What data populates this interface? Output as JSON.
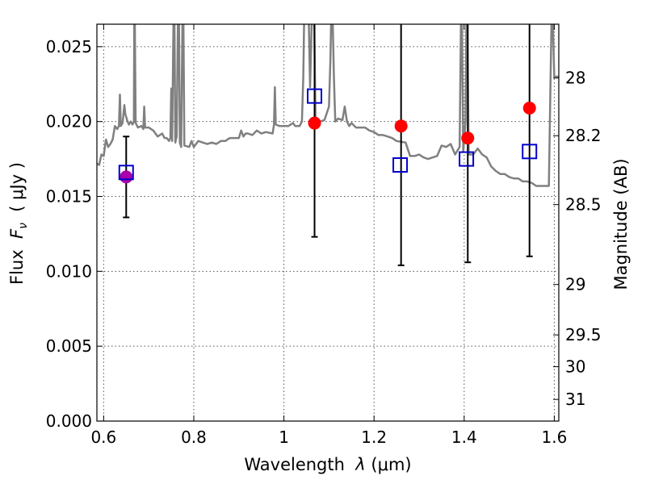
{
  "chart_data": {
    "type": "scatter",
    "title": "",
    "xlabel_prefix": "Wavelength  ",
    "xlabel_symbol": "λ",
    "xlabel_units": " (μm)",
    "ylabel_prefix": "Flux  ",
    "ylabel_symbol": "F",
    "ylabel_sub": "ν",
    "ylabel_units": "  ( μJy )",
    "y2label": "Magnitude (AB)",
    "xlim": [
      0.585,
      1.61
    ],
    "ylim": [
      0.0,
      0.0265
    ],
    "grid": true,
    "xticks": [
      {
        "v": 0.6,
        "label": "0.6"
      },
      {
        "v": 0.8,
        "label": "0.8"
      },
      {
        "v": 1.0,
        "label": "1"
      },
      {
        "v": 1.2,
        "label": "1.2"
      },
      {
        "v": 1.4,
        "label": "1.4"
      },
      {
        "v": 1.6,
        "label": "1.6"
      }
    ],
    "yticks": [
      {
        "v": 0.0,
        "label": "0.000"
      },
      {
        "v": 0.005,
        "label": "0.005"
      },
      {
        "v": 0.01,
        "label": "0.010"
      },
      {
        "v": 0.015,
        "label": "0.015"
      },
      {
        "v": 0.02,
        "label": "0.020"
      },
      {
        "v": 0.025,
        "label": "0.025"
      }
    ],
    "y2ticks": [
      {
        "mag": 28,
        "label": "28"
      },
      {
        "mag": 28.2,
        "label": "28.2"
      },
      {
        "mag": 28.5,
        "label": "28.5"
      },
      {
        "mag": 29,
        "label": "29"
      },
      {
        "mag": 29.5,
        "label": "29.5"
      },
      {
        "mag": 30,
        "label": "30"
      },
      {
        "mag": 31,
        "label": "31"
      }
    ],
    "y2_zeropoint_mag": 23.9,
    "colors": {
      "spectrum": "#808080",
      "observed": "#ff0000",
      "observed_edge": "#ff0000",
      "first_observed": "#aa00aa",
      "model": "#0000cc",
      "errorbar": "#000000",
      "grid": "#555555"
    },
    "series": [
      {
        "name": "model spectrum",
        "kind": "line",
        "points": [
          [
            0.585,
            0.0172
          ],
          [
            0.59,
            0.0171
          ],
          [
            0.595,
            0.0178
          ],
          [
            0.6,
            0.0177
          ],
          [
            0.605,
            0.0188
          ],
          [
            0.61,
            0.0183
          ],
          [
            0.615,
            0.0185
          ],
          [
            0.62,
            0.0188
          ],
          [
            0.625,
            0.0197
          ],
          [
            0.63,
            0.0195
          ],
          [
            0.634,
            0.0197
          ],
          [
            0.636,
            0.0218
          ],
          [
            0.638,
            0.0197
          ],
          [
            0.642,
            0.0199
          ],
          [
            0.646,
            0.0211
          ],
          [
            0.648,
            0.0205
          ],
          [
            0.652,
            0.0201
          ],
          [
            0.656,
            0.0198
          ],
          [
            0.66,
            0.02
          ],
          [
            0.664,
            0.0198
          ],
          [
            0.667,
            0.02
          ],
          [
            0.668,
            0.027
          ],
          [
            0.669,
            0.027
          ],
          [
            0.671,
            0.0199
          ],
          [
            0.676,
            0.0196
          ],
          [
            0.684,
            0.0197
          ],
          [
            0.688,
            0.0195
          ],
          [
            0.69,
            0.021
          ],
          [
            0.692,
            0.0196
          ],
          [
            0.7,
            0.0196
          ],
          [
            0.71,
            0.0194
          ],
          [
            0.72,
            0.019
          ],
          [
            0.73,
            0.0192
          ],
          [
            0.735,
            0.0189
          ],
          [
            0.74,
            0.0189
          ],
          [
            0.745,
            0.0187
          ],
          [
            0.748,
            0.0189
          ],
          [
            0.75,
            0.0222
          ],
          [
            0.752,
            0.0187
          ],
          [
            0.755,
            0.027
          ],
          [
            0.757,
            0.027
          ],
          [
            0.759,
            0.0186
          ],
          [
            0.762,
            0.019
          ],
          [
            0.765,
            0.027
          ],
          [
            0.767,
            0.027
          ],
          [
            0.769,
            0.0186
          ],
          [
            0.772,
            0.0183
          ],
          [
            0.775,
            0.027
          ],
          [
            0.777,
            0.027
          ],
          [
            0.779,
            0.0184
          ],
          [
            0.79,
            0.0183
          ],
          [
            0.795,
            0.0187
          ],
          [
            0.8,
            0.0183
          ],
          [
            0.81,
            0.0187
          ],
          [
            0.82,
            0.0186
          ],
          [
            0.83,
            0.0185
          ],
          [
            0.84,
            0.0186
          ],
          [
            0.85,
            0.0185
          ],
          [
            0.86,
            0.0187
          ],
          [
            0.87,
            0.0187
          ],
          [
            0.88,
            0.0189
          ],
          [
            0.89,
            0.0189
          ],
          [
            0.9,
            0.0189
          ],
          [
            0.905,
            0.0194
          ],
          [
            0.91,
            0.019
          ],
          [
            0.915,
            0.0192
          ],
          [
            0.92,
            0.0192
          ],
          [
            0.93,
            0.0191
          ],
          [
            0.94,
            0.0194
          ],
          [
            0.95,
            0.0192
          ],
          [
            0.96,
            0.0193
          ],
          [
            0.975,
            0.0192
          ],
          [
            0.978,
            0.0198
          ],
          [
            0.98,
            0.0223
          ],
          [
            0.982,
            0.0198
          ],
          [
            0.99,
            0.0197
          ],
          [
            1.0,
            0.0197
          ],
          [
            1.01,
            0.0197
          ],
          [
            1.02,
            0.0199
          ],
          [
            1.025,
            0.0197
          ],
          [
            1.035,
            0.0197
          ],
          [
            1.04,
            0.02
          ],
          [
            1.043,
            0.023
          ],
          [
            1.045,
            0.027
          ],
          [
            1.055,
            0.027
          ],
          [
            1.058,
            0.0223
          ],
          [
            1.062,
            0.027
          ],
          [
            1.067,
            0.027
          ],
          [
            1.07,
            0.0203
          ],
          [
            1.08,
            0.02
          ],
          [
            1.09,
            0.0201
          ],
          [
            1.1,
            0.021
          ],
          [
            1.103,
            0.024
          ],
          [
            1.105,
            0.027
          ],
          [
            1.108,
            0.027
          ],
          [
            1.111,
            0.023
          ],
          [
            1.114,
            0.02
          ],
          [
            1.12,
            0.0202
          ],
          [
            1.13,
            0.0201
          ],
          [
            1.135,
            0.021
          ],
          [
            1.14,
            0.02
          ],
          [
            1.145,
            0.0197
          ],
          [
            1.15,
            0.0199
          ],
          [
            1.16,
            0.0196
          ],
          [
            1.17,
            0.0196
          ],
          [
            1.18,
            0.0196
          ],
          [
            1.19,
            0.0194
          ],
          [
            1.2,
            0.0193
          ],
          [
            1.21,
            0.0191
          ],
          [
            1.22,
            0.0191
          ],
          [
            1.23,
            0.019
          ],
          [
            1.24,
            0.0189
          ],
          [
            1.25,
            0.0187
          ],
          [
            1.27,
            0.0186
          ],
          [
            1.28,
            0.0177
          ],
          [
            1.29,
            0.0177
          ],
          [
            1.3,
            0.0178
          ],
          [
            1.31,
            0.0176
          ],
          [
            1.32,
            0.0175
          ],
          [
            1.33,
            0.0176
          ],
          [
            1.34,
            0.0177
          ],
          [
            1.35,
            0.0184
          ],
          [
            1.36,
            0.0183
          ],
          [
            1.37,
            0.0185
          ],
          [
            1.38,
            0.0178
          ],
          [
            1.39,
            0.0183
          ],
          [
            1.393,
            0.027
          ],
          [
            1.395,
            0.027
          ],
          [
            1.398,
            0.018
          ],
          [
            1.403,
            0.02
          ],
          [
            1.405,
            0.027
          ],
          [
            1.407,
            0.027
          ],
          [
            1.41,
            0.0178
          ],
          [
            1.42,
            0.0178
          ],
          [
            1.43,
            0.0182
          ],
          [
            1.44,
            0.0178
          ],
          [
            1.45,
            0.0176
          ],
          [
            1.46,
            0.017
          ],
          [
            1.47,
            0.0167
          ],
          [
            1.48,
            0.0165
          ],
          [
            1.49,
            0.0165
          ],
          [
            1.5,
            0.0163
          ],
          [
            1.51,
            0.0162
          ],
          [
            1.52,
            0.0162
          ],
          [
            1.53,
            0.016
          ],
          [
            1.54,
            0.016
          ],
          [
            1.55,
            0.0159
          ],
          [
            1.56,
            0.0157
          ],
          [
            1.57,
            0.0157
          ],
          [
            1.58,
            0.0157
          ],
          [
            1.588,
            0.0157
          ],
          [
            1.592,
            0.0235
          ],
          [
            1.594,
            0.027
          ],
          [
            1.597,
            0.0265
          ],
          [
            1.6,
            0.023
          ],
          [
            1.61,
            0.023
          ]
        ]
      },
      {
        "name": "observed flux",
        "kind": "points_with_errorbars",
        "points": [
          {
            "x": 0.65,
            "y": 0.0163,
            "err": 0.0027
          },
          {
            "x": 1.068,
            "y": 0.0199,
            "err": 0.0076
          },
          {
            "x": 1.26,
            "y": 0.0197,
            "err": 0.0093
          },
          {
            "x": 1.408,
            "y": 0.0189,
            "err": 0.0083
          },
          {
            "x": 1.545,
            "y": 0.0209,
            "err": 0.0099
          }
        ]
      },
      {
        "name": "model photometry",
        "kind": "square_markers",
        "points": [
          {
            "x": 0.65,
            "y": 0.0166
          },
          {
            "x": 1.068,
            "y": 0.0217
          },
          {
            "x": 1.258,
            "y": 0.0171
          },
          {
            "x": 1.405,
            "y": 0.0175
          },
          {
            "x": 1.545,
            "y": 0.018
          }
        ]
      }
    ]
  }
}
